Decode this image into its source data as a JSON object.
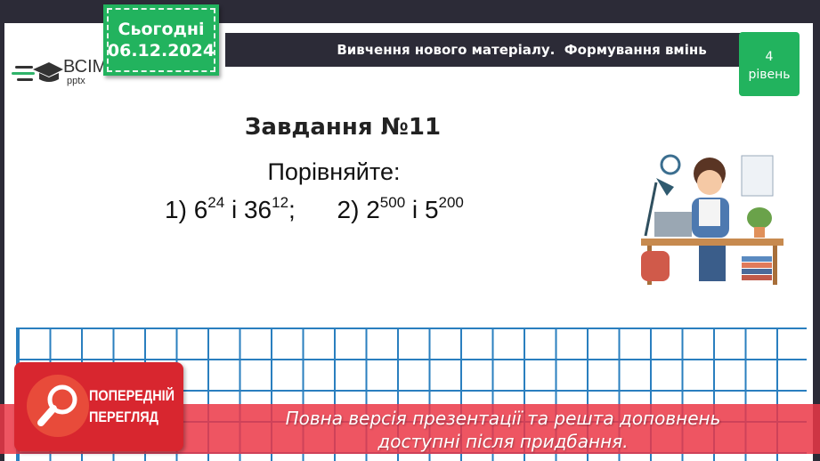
{
  "logo": {
    "brand": "ВСІМ",
    "sub": "pptx"
  },
  "date_tag": {
    "label": "Сьогодні",
    "date": "06.12.2024"
  },
  "header": {
    "title": "Вивчення нового матеріалу.  Формування вмінь"
  },
  "level": {
    "number": "4",
    "label": "рівень"
  },
  "task": {
    "title": "Завдання №11",
    "instruction": "Порівняйте:",
    "part1": {
      "prefix": "1) ",
      "b1": "6",
      "e1": "24",
      "sep": " і ",
      "b2": "36",
      "e2": "12",
      "end": ";"
    },
    "part2": {
      "prefix": "2) ",
      "b1": "2",
      "e1": "500",
      "sep": " і ",
      "b2": "5",
      "e2": "200"
    }
  },
  "preview": {
    "line1": "ПОПЕРЕДНІЙ",
    "line2": "ПЕРЕГЛЯД",
    "icon": "magnifier-icon"
  },
  "banner": {
    "line1": "Повна версія презентації та решта доповнень",
    "line2": "доступні після придбання."
  },
  "colors": {
    "frame": "#2c2b37",
    "accent_green": "#22b35e",
    "grid": "#2a7fbf",
    "banner": "#eb3746"
  }
}
